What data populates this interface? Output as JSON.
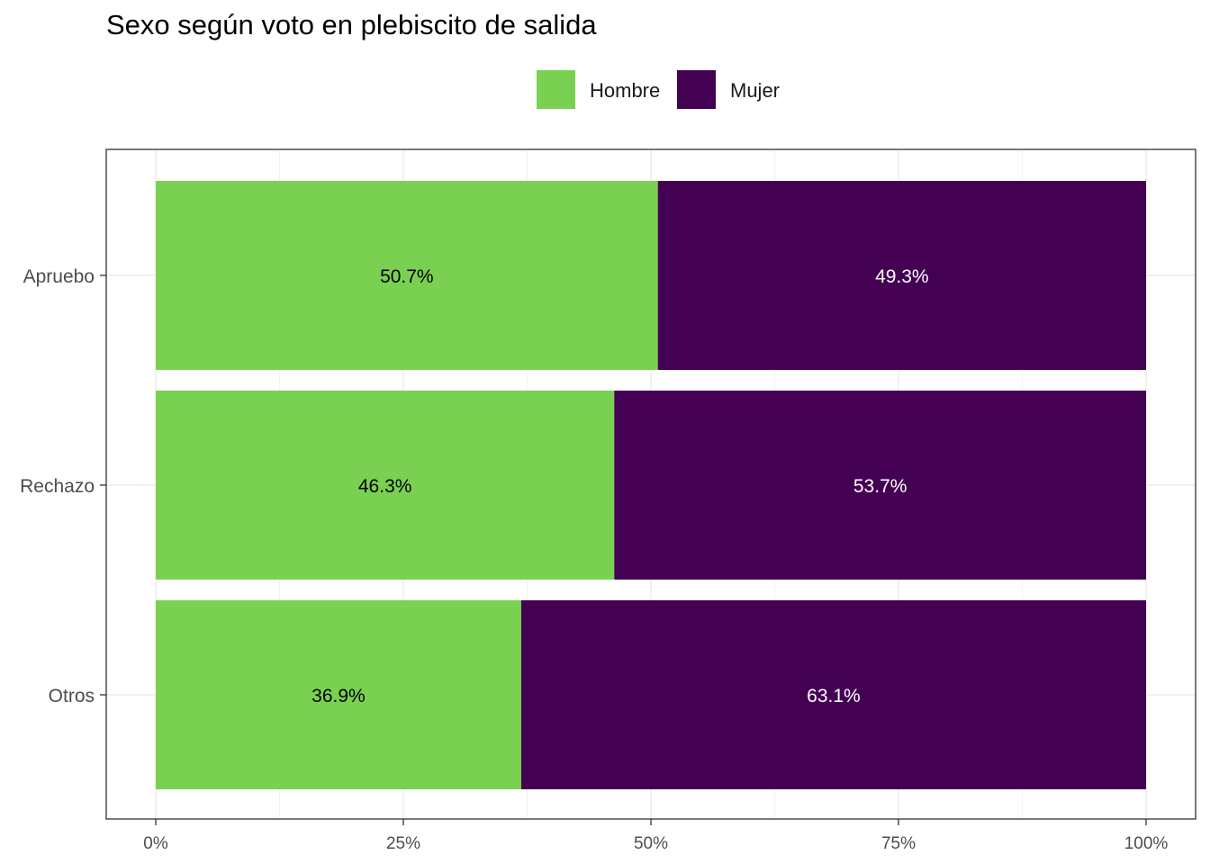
{
  "chart_data": {
    "type": "bar",
    "orientation": "horizontal",
    "stacked": true,
    "title": "Sexo según voto en plebiscito de salida",
    "categories": [
      "Apruebo",
      "Rechazo",
      "Otros"
    ],
    "series": [
      {
        "name": "Hombre",
        "color": "#7AD151",
        "values": [
          50.7,
          46.3,
          36.9
        ],
        "labels": [
          "50.7%",
          "46.3%",
          "36.9%"
        ],
        "label_color": "#000000"
      },
      {
        "name": "Mujer",
        "color": "#440154",
        "values": [
          49.3,
          53.7,
          63.1
        ],
        "labels": [
          "49.3%",
          "53.7%",
          "63.1%"
        ],
        "label_color": "#ffffff"
      }
    ],
    "x_ticks": [
      0,
      25,
      50,
      75,
      100
    ],
    "x_tick_labels": [
      "0%",
      "25%",
      "50%",
      "75%",
      "100%"
    ],
    "xlim": [
      0,
      100
    ],
    "xlabel": "",
    "ylabel": "",
    "legend_position": "top",
    "grid": true
  }
}
